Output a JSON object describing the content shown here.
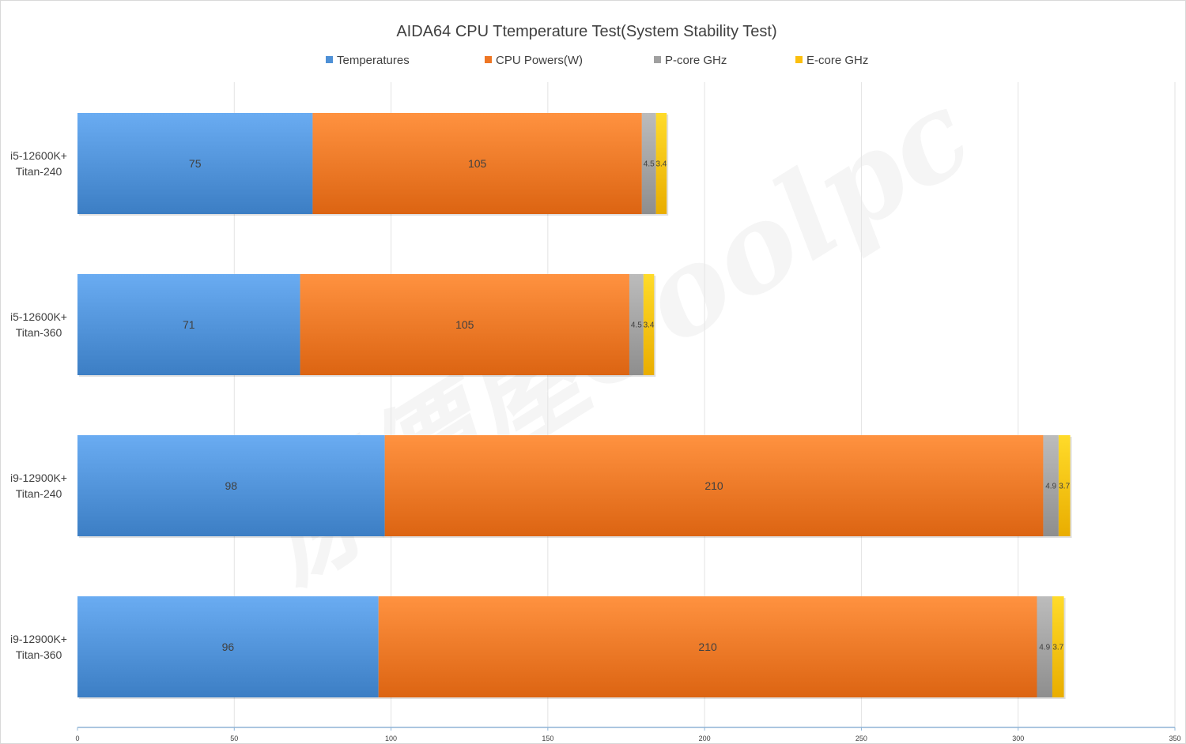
{
  "colors": {
    "Temperatures": "#4e90d6",
    "CPU Powers(W)": "#ee7624",
    "P-core GHz": "#a0a0a0",
    "E-core GHz": "#fbbf0e"
  },
  "chart_data": {
    "type": "bar",
    "orientation": "horizontal",
    "stacked": true,
    "title": "AIDA64 CPU Ttemperature Test(System Stability Test)",
    "legend_position": "top",
    "categories": [
      [
        "i5-12600K+",
        "Titan-240"
      ],
      [
        "i5-12600K+",
        "Titan-360"
      ],
      [
        "i9-12900K+",
        "Titan-240"
      ],
      [
        "i9-12900K+",
        "Titan-360"
      ]
    ],
    "series": [
      {
        "name": "Temperatures",
        "values": [
          75,
          71,
          98,
          96
        ]
      },
      {
        "name": "CPU Powers(W)",
        "values": [
          105,
          105,
          210,
          210
        ]
      },
      {
        "name": "P-core GHz",
        "values": [
          4.5,
          4.5,
          4.9,
          4.9
        ]
      },
      {
        "name": "E-core GHz",
        "values": [
          3.4,
          3.4,
          3.7,
          3.7
        ]
      }
    ],
    "xlim": [
      0,
      350
    ],
    "xticks": [
      0,
      50,
      100,
      150,
      200,
      250,
      300,
      350
    ],
    "grid": true
  },
  "watermark": {
    "text": "原價屋Coolpc"
  }
}
